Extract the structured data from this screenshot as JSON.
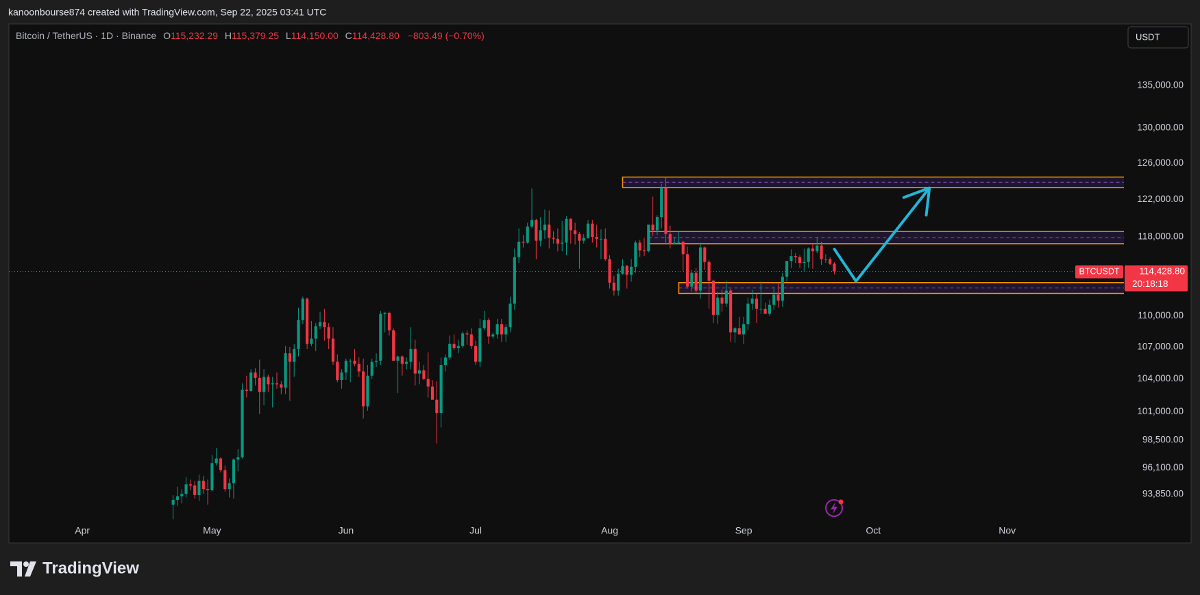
{
  "header": "kanoonbourse874 created with TradingView.com, Sep 22, 2025 03:41 UTC",
  "logo": "TradingView",
  "chart_data": {
    "type": "candlestick",
    "legend": {
      "symbol": "Bitcoin / TetherUS · 1D · Binance",
      "fields": [
        {
          "key": "O",
          "label": "115,232.29"
        },
        {
          "key": "H",
          "label": "115,379.25"
        },
        {
          "key": "L",
          "label": "114,150.00"
        },
        {
          "key": "C",
          "label": "114,428.80"
        }
      ],
      "change": "−803.49 (−0.70%)"
    },
    "currency": "USDT",
    "symbol_tag": "BTCUSDT",
    "last_price": {
      "value": 114428.8,
      "label": "114,428.80"
    },
    "countdown": "20:18:18",
    "up_color": "#089981",
    "down_color": "#f23645",
    "log_scale": true,
    "grid": false,
    "ylim": [
      91600,
      142600
    ],
    "yticks": [
      {
        "value": 93850,
        "label": "93,850.00"
      },
      {
        "value": 96100,
        "label": "96,100.00"
      },
      {
        "value": 98500,
        "label": "98,500.00"
      },
      {
        "value": 101000,
        "label": "101,000.00"
      },
      {
        "value": 104000,
        "label": "104,000.00"
      },
      {
        "value": 107000,
        "label": "107,000.00"
      },
      {
        "value": 110000,
        "label": "110,000.00"
      },
      {
        "value": 118000,
        "label": "118,000.00"
      },
      {
        "value": 122000,
        "label": "122,000.00"
      },
      {
        "value": 126000,
        "label": "126,000.00"
      },
      {
        "value": 130000,
        "label": "130,000.00"
      },
      {
        "value": 135000,
        "label": "135,000.00"
      }
    ],
    "xlim": [
      "2025-03-15",
      "2025-11-28"
    ],
    "xticks": [
      {
        "value": "2025-04-01",
        "label": "Apr"
      },
      {
        "value": "2025-05-01",
        "label": "May"
      },
      {
        "value": "2025-06-01",
        "label": "Jun"
      },
      {
        "value": "2025-07-01",
        "label": "Jul"
      },
      {
        "value": "2025-08-01",
        "label": "Aug"
      },
      {
        "value": "2025-09-01",
        "label": "Sep"
      },
      {
        "value": "2025-10-01",
        "label": "Oct"
      },
      {
        "value": "2025-11-01",
        "label": "Nov"
      }
    ],
    "zone_color": "#ff9800",
    "zone_line_color": "#7e57c2",
    "zones": [
      {
        "from": "2025-08-04",
        "top": 124450,
        "bottom": 123300
      },
      {
        "from": "2025-08-10",
        "top": 118580,
        "bottom": 117290
      },
      {
        "from": "2025-08-17",
        "top": 113300,
        "bottom": 112220
      }
    ],
    "arrow": {
      "color": "#22b5d6",
      "x": [
        "2025-09-22",
        "2025-09-27",
        "2025-10-14"
      ],
      "y": [
        116730,
        113450,
        123250
      ]
    },
    "x": [
      "2025-04-22",
      "2025-04-23",
      "2025-04-24",
      "2025-04-25",
      "2025-04-26",
      "2025-04-27",
      "2025-04-28",
      "2025-04-29",
      "2025-04-30",
      "2025-05-01",
      "2025-05-02",
      "2025-05-03",
      "2025-05-04",
      "2025-05-05",
      "2025-05-06",
      "2025-05-07",
      "2025-05-08",
      "2025-05-09",
      "2025-05-10",
      "2025-05-11",
      "2025-05-12",
      "2025-05-13",
      "2025-05-14",
      "2025-05-15",
      "2025-05-16",
      "2025-05-17",
      "2025-05-18",
      "2025-05-19",
      "2025-05-20",
      "2025-05-21",
      "2025-05-22",
      "2025-05-23",
      "2025-05-24",
      "2025-05-25",
      "2025-05-26",
      "2025-05-27",
      "2025-05-28",
      "2025-05-29",
      "2025-05-30",
      "2025-05-31",
      "2025-06-01",
      "2025-06-02",
      "2025-06-03",
      "2025-06-04",
      "2025-06-05",
      "2025-06-06",
      "2025-06-07",
      "2025-06-08",
      "2025-06-09",
      "2025-06-10",
      "2025-06-11",
      "2025-06-12",
      "2025-06-13",
      "2025-06-14",
      "2025-06-15",
      "2025-06-16",
      "2025-06-17",
      "2025-06-18",
      "2025-06-19",
      "2025-06-20",
      "2025-06-21",
      "2025-06-22",
      "2025-06-23",
      "2025-06-24",
      "2025-06-25",
      "2025-06-26",
      "2025-06-27",
      "2025-06-28",
      "2025-06-29",
      "2025-06-30",
      "2025-07-01",
      "2025-07-02",
      "2025-07-03",
      "2025-07-04",
      "2025-07-05",
      "2025-07-06",
      "2025-07-07",
      "2025-07-08",
      "2025-07-09",
      "2025-07-10",
      "2025-07-11",
      "2025-07-12",
      "2025-07-13",
      "2025-07-14",
      "2025-07-15",
      "2025-07-16",
      "2025-07-17",
      "2025-07-18",
      "2025-07-19",
      "2025-07-20",
      "2025-07-21",
      "2025-07-22",
      "2025-07-23",
      "2025-07-24",
      "2025-07-25",
      "2025-07-26",
      "2025-07-27",
      "2025-07-28",
      "2025-07-29",
      "2025-07-30",
      "2025-07-31",
      "2025-08-01",
      "2025-08-02",
      "2025-08-03",
      "2025-08-04",
      "2025-08-05",
      "2025-08-06",
      "2025-08-07",
      "2025-08-08",
      "2025-08-09",
      "2025-08-10",
      "2025-08-11",
      "2025-08-12",
      "2025-08-13",
      "2025-08-14",
      "2025-08-15",
      "2025-08-16",
      "2025-08-17",
      "2025-08-18",
      "2025-08-19",
      "2025-08-20",
      "2025-08-21",
      "2025-08-22",
      "2025-08-23",
      "2025-08-24",
      "2025-08-25",
      "2025-08-26",
      "2025-08-27",
      "2025-08-28",
      "2025-08-29",
      "2025-08-30",
      "2025-08-31",
      "2025-09-01",
      "2025-09-02",
      "2025-09-03",
      "2025-09-04",
      "2025-09-05",
      "2025-09-06",
      "2025-09-07",
      "2025-09-08",
      "2025-09-09",
      "2025-09-10",
      "2025-09-11",
      "2025-09-12",
      "2025-09-13",
      "2025-09-14",
      "2025-09-15",
      "2025-09-16",
      "2025-09-17",
      "2025-09-18",
      "2025-09-19",
      "2025-09-20",
      "2025-09-21",
      "2025-09-22"
    ],
    "ohlc": [
      [
        93000,
        93800,
        91800,
        93400
      ],
      [
        93400,
        94500,
        92900,
        93700
      ],
      [
        93700,
        94300,
        93100,
        93900
      ],
      [
        93900,
        95300,
        93600,
        94700
      ],
      [
        94700,
        95100,
        94200,
        94600
      ],
      [
        94600,
        95000,
        93500,
        93800
      ],
      [
        93800,
        95500,
        93300,
        95000
      ],
      [
        95000,
        95400,
        93900,
        94300
      ],
      [
        94300,
        95100,
        93000,
        94200
      ],
      [
        94200,
        97200,
        94100,
        96500
      ],
      [
        96500,
        97800,
        96300,
        96900
      ],
      [
        96900,
        97000,
        95700,
        95900
      ],
      [
        95900,
        96300,
        94100,
        94300
      ],
      [
        94300,
        95200,
        93600,
        94800
      ],
      [
        94800,
        96900,
        93500,
        96800
      ],
      [
        96800,
        97700,
        95800,
        97000
      ],
      [
        97000,
        103600,
        96900,
        103000
      ],
      [
        103000,
        104300,
        102300,
        102900
      ],
      [
        102900,
        104900,
        102800,
        104600
      ],
      [
        104600,
        105000,
        103400,
        104100
      ],
      [
        104100,
        105800,
        100800,
        102800
      ],
      [
        102800,
        104900,
        101600,
        104200
      ],
      [
        104200,
        104400,
        102800,
        103500
      ],
      [
        103500,
        104200,
        101400,
        103600
      ],
      [
        103600,
        104600,
        103100,
        103500
      ],
      [
        103500,
        103800,
        102600,
        103200
      ],
      [
        103200,
        107100,
        102600,
        106400
      ],
      [
        106400,
        107000,
        102000,
        105600
      ],
      [
        105600,
        107300,
        104200,
        106800
      ],
      [
        106800,
        110800,
        106100,
        109600
      ],
      [
        109600,
        111900,
        109200,
        111700
      ],
      [
        111700,
        111800,
        106800,
        107300
      ],
      [
        107300,
        109500,
        107100,
        107800
      ],
      [
        107800,
        109300,
        106600,
        109000
      ],
      [
        109000,
        110400,
        108700,
        109400
      ],
      [
        109400,
        110700,
        107600,
        108900
      ],
      [
        108900,
        109300,
        106800,
        107800
      ],
      [
        107800,
        108900,
        105300,
        105600
      ],
      [
        105600,
        106300,
        103700,
        103900
      ],
      [
        103900,
        104900,
        103100,
        104600
      ],
      [
        104600,
        105900,
        103900,
        105700
      ],
      [
        105700,
        105900,
        103700,
        105700
      ],
      [
        105700,
        106800,
        105200,
        105400
      ],
      [
        105400,
        106000,
        104200,
        104700
      ],
      [
        104700,
        105900,
        100400,
        101500
      ],
      [
        101500,
        105300,
        101100,
        104300
      ],
      [
        104300,
        105900,
        104000,
        105600
      ],
      [
        105600,
        106400,
        105100,
        105700
      ],
      [
        105700,
        110500,
        105300,
        110200
      ],
      [
        110200,
        110400,
        108400,
        110300
      ],
      [
        110300,
        110400,
        108100,
        108600
      ],
      [
        108600,
        108800,
        105700,
        105700
      ],
      [
        105700,
        106200,
        102700,
        106100
      ],
      [
        106100,
        106200,
        104300,
        105400
      ],
      [
        105400,
        106000,
        104900,
        105600
      ],
      [
        105600,
        108900,
        104900,
        106800
      ],
      [
        106800,
        107700,
        103400,
        104500
      ],
      [
        104500,
        105600,
        103500,
        104800
      ],
      [
        104800,
        105300,
        103900,
        104000
      ],
      [
        104000,
        106500,
        102300,
        103300
      ],
      [
        103300,
        103900,
        102100,
        102100
      ],
      [
        102100,
        103800,
        98200,
        100900
      ],
      [
        100900,
        106000,
        99600,
        105300
      ],
      [
        105300,
        106300,
        104700,
        106000
      ],
      [
        106000,
        108100,
        105800,
        107300
      ],
      [
        107300,
        108200,
        106700,
        106900
      ],
      [
        106900,
        107700,
        106400,
        107100
      ],
      [
        107100,
        108500,
        106900,
        108300
      ],
      [
        108300,
        108600,
        107200,
        108200
      ],
      [
        108200,
        108800,
        106800,
        107100
      ],
      [
        107100,
        107600,
        105300,
        105600
      ],
      [
        105600,
        109700,
        105100,
        108800
      ],
      [
        108800,
        110500,
        108600,
        109600
      ],
      [
        109600,
        109800,
        107300,
        108000
      ],
      [
        108000,
        108400,
        107800,
        108200
      ],
      [
        108200,
        109700,
        107800,
        109200
      ],
      [
        109200,
        109700,
        107500,
        108200
      ],
      [
        108200,
        109200,
        107500,
        108900
      ],
      [
        108900,
        111900,
        108400,
        111200
      ],
      [
        111200,
        116800,
        110600,
        115900
      ],
      [
        115900,
        118900,
        115300,
        117500
      ],
      [
        117500,
        118200,
        116900,
        117400
      ],
      [
        117400,
        119500,
        117300,
        119100
      ],
      [
        119100,
        123200,
        118900,
        119800
      ],
      [
        119800,
        119900,
        115700,
        117600
      ],
      [
        117600,
        120100,
        117000,
        118700
      ],
      [
        118700,
        120900,
        117800,
        119300
      ],
      [
        119300,
        120800,
        116800,
        117900
      ],
      [
        117900,
        118600,
        117300,
        117800
      ],
      [
        117800,
        118900,
        116500,
        117300
      ],
      [
        117300,
        119700,
        116500,
        117400
      ],
      [
        117400,
        120200,
        116100,
        119900
      ],
      [
        119900,
        120000,
        117300,
        118700
      ],
      [
        118700,
        119500,
        117200,
        118300
      ],
      [
        118300,
        118500,
        114700,
        117600
      ],
      [
        117600,
        118300,
        117300,
        117900
      ],
      [
        117900,
        119800,
        117800,
        119400
      ],
      [
        119400,
        119800,
        117400,
        118000
      ],
      [
        118000,
        119300,
        116900,
        117800
      ],
      [
        117800,
        118800,
        115700,
        117800
      ],
      [
        117800,
        118900,
        115500,
        115700
      ],
      [
        115700,
        116100,
        112700,
        113300
      ],
      [
        113300,
        114000,
        112000,
        112500
      ],
      [
        112500,
        114700,
        112000,
        114200
      ],
      [
        114200,
        115700,
        114100,
        115000
      ],
      [
        115000,
        115100,
        112700,
        114100
      ],
      [
        114100,
        115700,
        113400,
        114900
      ],
      [
        114900,
        117600,
        114300,
        117400
      ],
      [
        117400,
        117700,
        115900,
        116600
      ],
      [
        116600,
        117900,
        116000,
        116500
      ],
      [
        116500,
        119300,
        116400,
        119300
      ],
      [
        119300,
        122300,
        118100,
        118700
      ],
      [
        118700,
        120300,
        118200,
        120100
      ],
      [
        120100,
        123700,
        118900,
        123300
      ],
      [
        123300,
        124400,
        117200,
        118300
      ],
      [
        118300,
        119200,
        116800,
        117300
      ],
      [
        117300,
        117900,
        117200,
        117400
      ],
      [
        117400,
        118600,
        117200,
        117500
      ],
      [
        117500,
        117600,
        114500,
        116200
      ],
      [
        116200,
        117000,
        112700,
        112900
      ],
      [
        112900,
        114600,
        112400,
        114300
      ],
      [
        114300,
        114800,
        112300,
        112500
      ],
      [
        112500,
        117400,
        111700,
        116900
      ],
      [
        116900,
        117000,
        114600,
        115400
      ],
      [
        115400,
        115600,
        110700,
        113500
      ],
      [
        113500,
        113600,
        109300,
        110100
      ],
      [
        110100,
        112400,
        109200,
        111800
      ],
      [
        111800,
        112600,
        110400,
        111200
      ],
      [
        111200,
        113500,
        110900,
        112500
      ],
      [
        112500,
        112700,
        107500,
        108400
      ],
      [
        108400,
        108900,
        107400,
        108800
      ],
      [
        108800,
        109900,
        108200,
        108200
      ],
      [
        108200,
        109900,
        107300,
        109200
      ],
      [
        109200,
        111800,
        108600,
        111200
      ],
      [
        111200,
        112600,
        110600,
        111700
      ],
      [
        111700,
        112200,
        109300,
        110700
      ],
      [
        110700,
        113400,
        110200,
        110700
      ],
      [
        110700,
        111300,
        110200,
        110200
      ],
      [
        110200,
        111600,
        110000,
        111100
      ],
      [
        111100,
        112900,
        110600,
        112100
      ],
      [
        112100,
        113200,
        110800,
        111500
      ],
      [
        111500,
        114300,
        110900,
        113900
      ],
      [
        113900,
        115500,
        113400,
        115500
      ],
      [
        115500,
        116700,
        114800,
        116000
      ],
      [
        116000,
        116300,
        115300,
        115900
      ],
      [
        115900,
        116100,
        114800,
        115300
      ],
      [
        115300,
        116800,
        114400,
        115400
      ],
      [
        115400,
        116900,
        114800,
        116800
      ],
      [
        116800,
        117300,
        114700,
        116500
      ],
      [
        116500,
        117900,
        116300,
        117100
      ],
      [
        117100,
        117500,
        115100,
        115700
      ],
      [
        115700,
        116200,
        115300,
        115700
      ],
      [
        115700,
        115900,
        115100,
        115200
      ],
      [
        115232.29,
        115379.25,
        114150,
        114428.8
      ]
    ]
  }
}
